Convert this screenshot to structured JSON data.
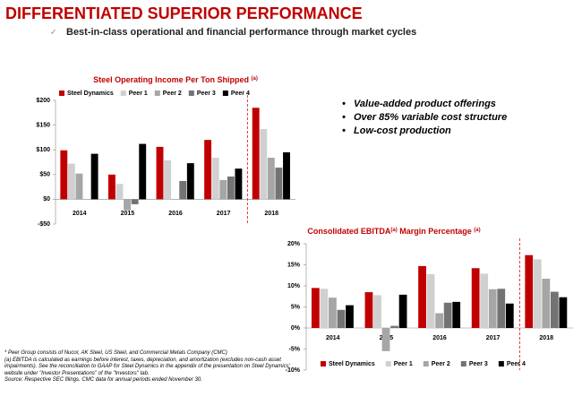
{
  "header": {
    "title": "DIFFERENTIATED SUPERIOR PERFORMANCE",
    "subtitle": "Best-in-class operational and financial performance through market cycles"
  },
  "bullets": [
    "Value-added product offerings",
    "Over 85% variable cost structure",
    "Low-cost production"
  ],
  "footnotes": [
    "* Peer Group consists of Nucor, AK Steel, US Steel, and Commercial Metals Company (CMC)",
    "(a) EBITDA is calculated as earnings before interest, taxes, depreciation, and amortization (excludes non-cash asset impairments). See the reconciliation to GAAP for Steel Dynamics in the appendix of the presentation on Steel Dynamics' website under \"Investor Presentations\" of the \"Investors\" tab.",
    "Source: Respective SEC filings. CMC data for annual periods ended November 30."
  ],
  "chart_data": [
    {
      "type": "bar",
      "title_parts": [
        "Steel Operating Income Per Ton Shipped ",
        "(a)"
      ],
      "legend": "top",
      "categories": [
        "2014",
        "2015",
        "2016",
        "2017",
        "2018"
      ],
      "series": [
        {
          "name": "Steel Dynamics",
          "color": "#c00000",
          "values": [
            99,
            50,
            106,
            120,
            185
          ]
        },
        {
          "name": "Peer 1",
          "color": "#d0d0d0",
          "values": [
            72,
            31,
            79,
            84,
            142
          ]
        },
        {
          "name": "Peer 2",
          "color": "#a6a6a6",
          "values": [
            52,
            -22,
            null,
            39,
            84
          ]
        },
        {
          "name": "Peer 3",
          "color": "#737373",
          "values": [
            null,
            -10,
            37,
            46,
            64
          ]
        },
        {
          "name": "Peer 4",
          "color": "#000000",
          "values": [
            92,
            112,
            73,
            62,
            95
          ]
        }
      ],
      "ylim": [
        -50,
        200
      ],
      "yticks": [
        {
          "value": -50,
          "label": "-$50"
        },
        {
          "value": 0,
          "label": "$0"
        },
        {
          "value": 50,
          "label": "$50"
        },
        {
          "value": 100,
          "label": "$100"
        },
        {
          "value": 150,
          "label": "$150"
        },
        {
          "value": 200,
          "label": "$200"
        }
      ]
    },
    {
      "type": "bar",
      "title_parts": [
        "Consolidated EBITDA",
        "(a)",
        " Margin Percentage ",
        "(a)"
      ],
      "legend": "bottom",
      "categories": [
        "2014",
        "2015",
        "2016",
        "2017",
        "2018"
      ],
      "series": [
        {
          "name": "Steel Dynamics",
          "color": "#c00000",
          "values": [
            9.5,
            8.5,
            14.7,
            14.2,
            17.3
          ]
        },
        {
          "name": "Peer 1",
          "color": "#d0d0d0",
          "values": [
            9.3,
            7.8,
            12.8,
            12.9,
            16.3
          ]
        },
        {
          "name": "Peer 2",
          "color": "#a6a6a6",
          "values": [
            7.2,
            -5.5,
            3.5,
            9.2,
            11.7
          ]
        },
        {
          "name": "Peer 3",
          "color": "#737373",
          "values": [
            4.3,
            0.5,
            6.0,
            9.3,
            8.6
          ]
        },
        {
          "name": "Peer 4",
          "color": "#000000",
          "values": [
            5.4,
            7.9,
            6.2,
            5.8,
            7.3
          ]
        }
      ],
      "ylim": [
        -10,
        20
      ],
      "yticks": [
        {
          "value": -10,
          "label": "-10%"
        },
        {
          "value": -5,
          "label": "-5%"
        },
        {
          "value": 0,
          "label": "0%"
        },
        {
          "value": 5,
          "label": "5%"
        },
        {
          "value": 10,
          "label": "10%"
        },
        {
          "value": 15,
          "label": "15%"
        },
        {
          "value": 20,
          "label": "20%"
        }
      ]
    }
  ]
}
